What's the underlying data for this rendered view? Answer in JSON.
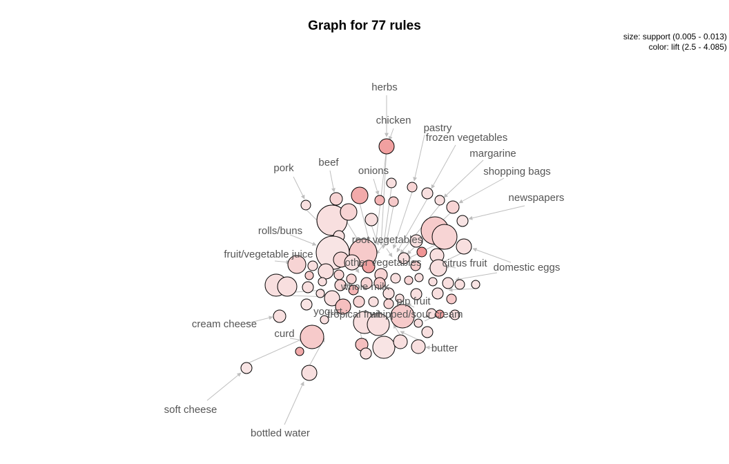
{
  "title": "Graph for 77 rules",
  "legend": {
    "size_line": "size: support (0.005 - 0.013)",
    "color_line": "color: lift (2.5 - 4.085)"
  },
  "colors": {
    "edge": "#bebebe",
    "label": "#555555",
    "lift_low": "#f9e9e9",
    "lift_high": "#ee8080"
  },
  "items": [
    "herbs",
    "chicken",
    "pastry",
    "frozen vegetables",
    "margarine",
    "shopping bags",
    "newspapers",
    "pork",
    "beef",
    "onions",
    "rolls/buns",
    "root vegetables",
    "fruit/vegetable juice",
    "other vegetables",
    "citrus fruit",
    "domestic eggs",
    "whole milk",
    "pip fruit",
    "yogurt",
    "tropical fruit",
    "whipped/sour cream",
    "cream cheese",
    "curd",
    "butter",
    "soft cheese",
    "bottled water"
  ]
}
